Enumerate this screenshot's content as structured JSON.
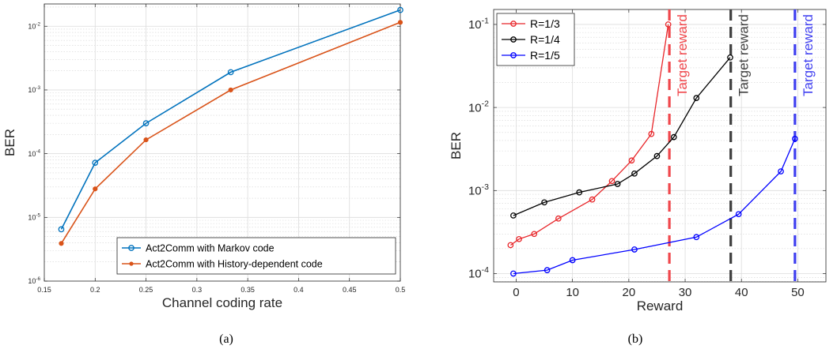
{
  "charts": [
    {
      "panel": "a",
      "caption": "(a)",
      "chart_data": {
        "type": "line",
        "title": "",
        "xlabel": "Channel coding rate",
        "ylabel": "BER",
        "xlim": [
          0.15,
          0.5
        ],
        "ylim_exp": [
          -6,
          -1.65
        ],
        "yscale": "log",
        "grid": true,
        "legend_placement": "bottom-right",
        "xticks": [
          0.15,
          0.2,
          0.25,
          0.3,
          0.35,
          0.4,
          0.45,
          0.5
        ],
        "xtick_labels": [
          "0.15",
          "0.2",
          "0.25",
          "0.3",
          "0.35",
          "0.4",
          "0.45",
          "0.5"
        ],
        "yticks_exp": [
          -6,
          -5,
          -4,
          -3,
          -2
        ],
        "series": [
          {
            "name": "Act2Comm with Markov code",
            "color": "#0072BD",
            "marker": "circle-open",
            "x": [
              0.1667,
              0.2,
              0.25,
              0.3333,
              0.5
            ],
            "y": [
              6.5e-06,
              7.2e-05,
              0.0003,
              0.0019,
              0.018
            ]
          },
          {
            "name": "Act2Comm with History-dependent code",
            "color": "#D95319",
            "marker": "dot",
            "x": [
              0.1667,
              0.2,
              0.25,
              0.3333,
              0.5
            ],
            "y": [
              3.9e-06,
              2.8e-05,
              0.000165,
              0.001,
              0.0115
            ]
          }
        ]
      }
    },
    {
      "panel": "b",
      "caption": "(b)",
      "chart_data": {
        "type": "line",
        "title": "",
        "xlabel": "Reward",
        "ylabel": "BER",
        "xlim": [
          -4,
          55
        ],
        "ylim_exp": [
          -4.1,
          -0.82
        ],
        "yscale": "log",
        "grid": true,
        "legend_placement": "top-left",
        "xticks": [
          0,
          10,
          20,
          30,
          40,
          50
        ],
        "xtick_labels": [
          "0",
          "10",
          "20",
          "30",
          "40",
          "50"
        ],
        "yticks_exp": [
          -4,
          -3,
          -2,
          -1
        ],
        "series": [
          {
            "name": "R=1/3",
            "color": "#E8262A",
            "x": [
              -1,
              0.5,
              3.2,
              7.5,
              13.5,
              17,
              20.5,
              24,
              27
            ],
            "y": [
              0.00022,
              0.00026,
              0.0003,
              0.00046,
              0.00078,
              0.0013,
              0.0023,
              0.0048,
              0.1
            ]
          },
          {
            "name": "R=1/4",
            "color": "#000000",
            "x": [
              -0.5,
              5,
              11.2,
              18,
              21,
              25,
              28,
              32,
              38
            ],
            "y": [
              0.0005,
              0.00072,
              0.00095,
              0.0012,
              0.0016,
              0.0026,
              0.0044,
              0.013,
              0.04
            ]
          },
          {
            "name": "R=1/5",
            "color": "#0000FF",
            "x": [
              -0.5,
              5.5,
              10,
              21,
              32,
              39.5,
              47,
              49.5
            ],
            "y": [
              0.0001,
              0.00011,
              0.000145,
              0.000195,
              0.000275,
              0.00052,
              0.0017,
              0.0042
            ]
          }
        ],
        "target_lines": [
          {
            "x": 27.2,
            "color": "#F0474C",
            "label": "Target reward"
          },
          {
            "x": 38.1,
            "color": "#3F3F3F",
            "label": "Target reward"
          },
          {
            "x": 49.5,
            "color": "#3F3FF0",
            "label": "Target reward"
          }
        ]
      }
    }
  ]
}
